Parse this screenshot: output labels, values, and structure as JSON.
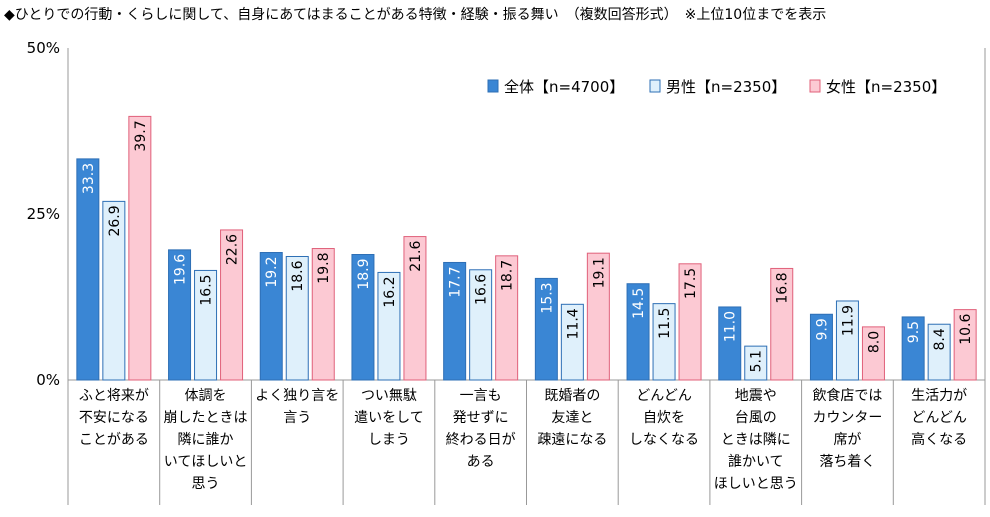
{
  "chart_data": {
    "type": "bar",
    "title": "◆ひとりでの行動・くらしに関して、自身にあてはまることがある特徴・経験・振る舞い　（複数回答形式）　※上位10位までを表示",
    "ylim": [
      0,
      50
    ],
    "yticks": [
      "0%",
      "25%",
      "50%"
    ],
    "ytick_values": [
      0,
      25,
      50
    ],
    "categories": [
      [
        "ふと将来が",
        "不安になる",
        "ことがある"
      ],
      [
        "体調を",
        "崩したときは",
        "隣に誰か",
        "いてほしいと",
        "思う"
      ],
      [
        "よく独り言を",
        "言う"
      ],
      [
        "つい無駄",
        "遣いをして",
        "しまう"
      ],
      [
        "一言も",
        "発せずに",
        "終わる日が",
        "ある"
      ],
      [
        "既婚者の",
        "友達と",
        "疎遠になる"
      ],
      [
        "どんどん",
        "自炊を",
        "しなくなる"
      ],
      [
        "地震や",
        "台風の",
        "ときは隣に",
        "誰かいて",
        "ほしいと思う"
      ],
      [
        "飲食店では",
        "カウンター",
        "席が",
        "落ち着く"
      ],
      [
        "生活力が",
        "どんどん",
        "高くなる"
      ]
    ],
    "series": [
      {
        "name": "全体【n=4700】",
        "values": [
          33.3,
          19.6,
          19.2,
          18.9,
          17.7,
          15.3,
          14.5,
          11.0,
          9.9,
          9.5
        ],
        "labels": [
          "33.3",
          "19.6",
          "19.2",
          "18.9",
          "17.7",
          "15.3",
          "14.5",
          "11.0",
          "9.9",
          "9.5"
        ]
      },
      {
        "name": "男性【n=2350】",
        "values": [
          26.9,
          16.5,
          18.6,
          16.2,
          16.6,
          11.4,
          11.5,
          5.1,
          11.9,
          8.4
        ],
        "labels": [
          "26.9",
          "16.5",
          "18.6",
          "16.2",
          "16.6",
          "11.4",
          "11.5",
          "5.1",
          "11.9",
          "8.4"
        ]
      },
      {
        "name": "女性【n=2350】",
        "values": [
          39.7,
          22.6,
          19.8,
          21.6,
          18.7,
          19.1,
          17.5,
          16.8,
          8.0,
          10.6
        ],
        "labels": [
          "39.7",
          "22.6",
          "19.8",
          "21.6",
          "18.7",
          "19.1",
          "17.5",
          "16.8",
          "8.0",
          "10.6"
        ]
      }
    ],
    "colors": {
      "fills": [
        "#3a86d4",
        "#dff0fb",
        "#fcc9d3"
      ],
      "strokes": [
        "#2e6fb5",
        "#2e6fb5",
        "#e0607a"
      ],
      "label_colors": [
        "#ffffff",
        "#000000",
        "#000000"
      ],
      "axis": "#999999"
    },
    "legend_position": "top-right"
  }
}
